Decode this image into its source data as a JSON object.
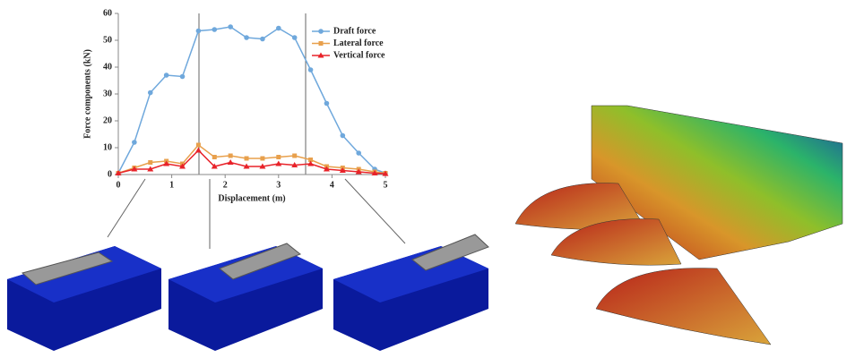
{
  "chart_data": {
    "type": "line",
    "x_label": "Displacement (m)",
    "y_label": "Force components (kN)",
    "x": [
      0,
      0.3,
      0.6,
      0.9,
      1.2,
      1.5,
      1.8,
      2.1,
      2.4,
      2.7,
      3.0,
      3.3,
      3.6,
      3.9,
      4.2,
      4.5,
      4.8,
      5.0
    ],
    "series": [
      {
        "name": "Draft force",
        "color": "#6fa8dc",
        "marker": "circle",
        "values": [
          0.5,
          12,
          30.5,
          37,
          36.5,
          53.5,
          54,
          55,
          51,
          50.5,
          54.5,
          51,
          39,
          26.5,
          14.5,
          8,
          2,
          0.5
        ]
      },
      {
        "name": "Lateral force",
        "color": "#e8a04c",
        "marker": "square",
        "values": [
          0.5,
          2.5,
          4.5,
          5,
          4,
          11,
          6.5,
          7,
          6,
          6,
          6.5,
          7,
          5.5,
          3,
          2.5,
          2,
          1,
          0.5
        ]
      },
      {
        "name": "Vertical force",
        "color": "#e8232a",
        "marker": "triangle",
        "values": [
          0.5,
          2,
          2,
          4,
          3,
          9,
          3,
          4.5,
          3,
          3,
          4,
          3.5,
          4,
          2,
          1.5,
          1,
          0.5,
          0.3
        ]
      }
    ],
    "xlim": [
      0,
      5
    ],
    "xticks": [
      0,
      1,
      2,
      3,
      4,
      5
    ],
    "ylim": [
      0,
      60
    ],
    "yticks": [
      0,
      10,
      20,
      30,
      40,
      50,
      60
    ],
    "legend": "upper right"
  }
}
